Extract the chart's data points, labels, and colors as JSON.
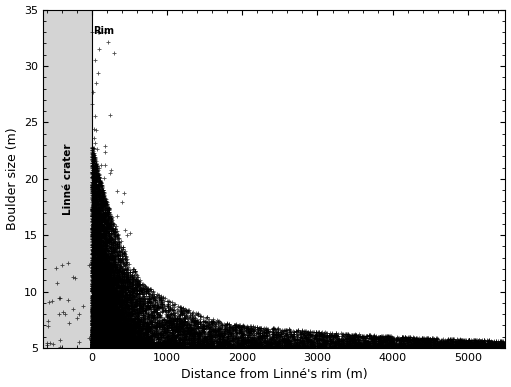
{
  "title": "",
  "xlabel": "Distance from Linné's rim (m)",
  "ylabel": "Boulder size (m)",
  "xlim": [
    -650,
    5500
  ],
  "ylim": [
    5,
    35
  ],
  "rim_x": 0,
  "crater_region_start": -650,
  "crater_region_end": 0,
  "rim_label": "Rim",
  "crater_label": "Linné crater",
  "bg_color": "#ffffff",
  "crater_fill_color": "#d4d4d4",
  "marker": "+",
  "marker_color": "#000000",
  "marker_size": 2.5,
  "xticks": [
    0,
    1000,
    2000,
    3000,
    4000,
    5000
  ],
  "yticks": [
    5,
    10,
    15,
    20,
    25,
    30,
    35
  ],
  "seed": 42
}
